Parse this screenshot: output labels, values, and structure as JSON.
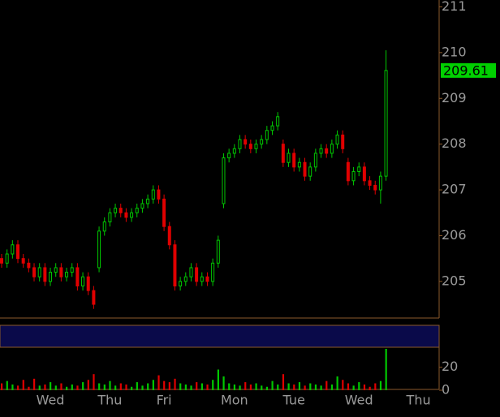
{
  "chart_data": {
    "type": "candlestick",
    "categories": [
      null,
      null,
      null,
      null,
      null,
      null,
      null,
      null,
      null,
      "Wed",
      null,
      null,
      null,
      null,
      null,
      null,
      null,
      null,
      null,
      null,
      "Thu",
      null,
      null,
      null,
      null,
      null,
      null,
      null,
      null,
      null,
      "Fri",
      null,
      null,
      null,
      null,
      null,
      null,
      null,
      null,
      null,
      null,
      null,
      null,
      "Mon",
      null,
      null,
      null,
      null,
      null,
      null,
      null,
      null,
      null,
      null,
      "Tue",
      null,
      null,
      null,
      null,
      null,
      null,
      null,
      null,
      null,
      null,
      null,
      "Wed",
      null,
      null,
      null,
      null,
      null,
      null,
      null,
      null,
      null,
      null,
      "Thu"
    ],
    "open": [
      205.5,
      205.4,
      205.6,
      205.8,
      205.5,
      205.4,
      205.3,
      205.1,
      205.3,
      205.0,
      205.2,
      205.3,
      205.1,
      205.2,
      205.3,
      204.9,
      205.1,
      204.8,
      205.3,
      206.1,
      206.3,
      206.5,
      206.6,
      206.5,
      206.4,
      206.5,
      206.6,
      206.7,
      206.8,
      207.0,
      206.8,
      206.2,
      205.8,
      204.9,
      205.0,
      205.1,
      205.3,
      205.0,
      205.1,
      205.0,
      205.4,
      206.7,
      207.7,
      207.8,
      207.9,
      208.1,
      208.0,
      207.9,
      208.0,
      208.1,
      208.3,
      208.4,
      208.0,
      207.6,
      207.8,
      207.5,
      207.6,
      207.3,
      207.5,
      207.8,
      207.9,
      207.8,
      208.0,
      208.2,
      207.6,
      207.2,
      207.4,
      207.5,
      207.2,
      207.1,
      207.0,
      207.3,
      null,
      null,
      null,
      null,
      null,
      null
    ],
    "high": [
      205.6,
      205.7,
      205.9,
      205.9,
      205.6,
      205.5,
      205.4,
      205.4,
      205.4,
      205.3,
      205.4,
      205.4,
      205.3,
      205.4,
      205.4,
      205.2,
      205.2,
      204.9,
      206.2,
      206.4,
      206.6,
      206.7,
      206.7,
      206.6,
      206.6,
      206.7,
      206.8,
      206.9,
      207.1,
      207.1,
      206.9,
      206.3,
      205.9,
      205.1,
      205.2,
      205.4,
      205.4,
      205.2,
      205.2,
      205.5,
      206.0,
      207.8,
      207.9,
      208.0,
      208.2,
      208.2,
      208.1,
      208.1,
      208.2,
      208.4,
      208.5,
      208.7,
      208.1,
      207.9,
      207.9,
      207.7,
      207.7,
      207.6,
      207.9,
      208.0,
      208.0,
      208.1,
      208.3,
      208.3,
      207.7,
      207.5,
      207.6,
      207.6,
      207.3,
      207.2,
      207.4,
      210.05,
      null,
      null,
      null,
      null,
      null,
      null
    ],
    "low": [
      205.3,
      205.3,
      205.5,
      205.4,
      205.3,
      205.2,
      205.0,
      205.0,
      204.9,
      204.9,
      205.1,
      205.0,
      205.0,
      205.1,
      204.8,
      204.8,
      204.7,
      204.4,
      205.2,
      206.0,
      206.2,
      206.4,
      206.4,
      206.3,
      206.3,
      206.4,
      206.5,
      206.6,
      206.7,
      206.7,
      206.1,
      205.7,
      204.8,
      204.8,
      204.9,
      205.0,
      204.9,
      204.9,
      204.9,
      204.9,
      205.3,
      206.6,
      207.6,
      207.7,
      207.8,
      207.9,
      207.8,
      207.8,
      207.9,
      208.0,
      208.2,
      208.3,
      207.5,
      207.5,
      207.4,
      207.4,
      207.2,
      207.2,
      207.4,
      207.7,
      207.7,
      207.7,
      207.9,
      207.8,
      207.1,
      207.1,
      207.3,
      207.1,
      207.0,
      206.9,
      206.7,
      207.2,
      null,
      null,
      null,
      null,
      null,
      null
    ],
    "close": [
      205.4,
      205.6,
      205.8,
      205.5,
      205.4,
      205.3,
      205.1,
      205.3,
      205.0,
      205.2,
      205.3,
      205.1,
      205.2,
      205.3,
      204.9,
      205.1,
      204.8,
      204.5,
      206.1,
      206.3,
      206.5,
      206.6,
      206.5,
      206.4,
      206.5,
      206.6,
      206.7,
      206.8,
      207.0,
      206.8,
      206.2,
      205.8,
      204.9,
      205.0,
      205.1,
      205.3,
      205.0,
      205.1,
      205.0,
      205.4,
      205.9,
      207.7,
      207.8,
      207.9,
      208.1,
      208.0,
      207.9,
      208.0,
      208.1,
      208.3,
      208.4,
      208.6,
      207.6,
      207.8,
      207.5,
      207.6,
      207.3,
      207.5,
      207.8,
      207.9,
      207.8,
      208.0,
      208.2,
      207.9,
      207.2,
      207.4,
      207.5,
      207.2,
      207.1,
      207.0,
      207.3,
      209.61,
      null,
      null,
      null,
      null,
      null,
      null
    ],
    "volume": [
      6,
      8,
      5,
      4,
      9,
      3,
      10,
      4,
      5,
      7,
      4,
      6,
      3,
      5,
      4,
      7,
      9,
      14,
      6,
      5,
      8,
      4,
      6,
      5,
      3,
      7,
      4,
      6,
      9,
      13,
      8,
      7,
      10,
      6,
      5,
      4,
      7,
      6,
      5,
      9,
      18,
      12,
      6,
      5,
      4,
      7,
      5,
      6,
      4,
      3,
      8,
      5,
      14,
      6,
      5,
      7,
      4,
      6,
      5,
      4,
      8,
      5,
      12,
      9,
      6,
      4,
      7,
      5,
      3,
      6,
      8,
      36,
      null,
      null,
      null,
      null,
      null,
      null
    ],
    "last_price": 209.61,
    "ylim": [
      204.2,
      211.15
    ],
    "yticks": [
      205,
      206,
      207,
      208,
      209,
      210,
      211
    ],
    "volume_ylim": [
      0,
      36
    ],
    "volume_yticks": [
      0,
      20
    ],
    "up_color": "#00c800",
    "down_color": "#e00000",
    "last_price_color": "#00d000"
  }
}
